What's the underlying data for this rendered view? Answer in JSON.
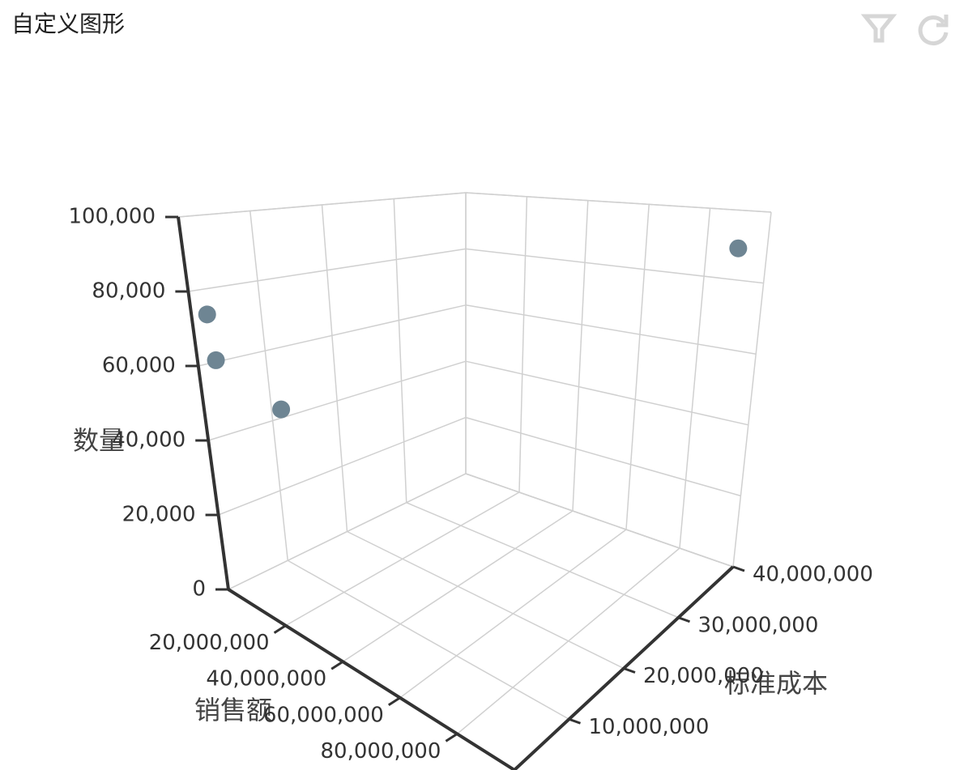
{
  "chart_data": {
    "type": "scatter3d",
    "title": "自定义图形",
    "x_label": "销售额",
    "y_label": "标准成本",
    "z_label": "数量",
    "color": "#6e8593",
    "x": [
      3000000,
      4000000,
      20000000,
      95000000
    ],
    "y": [
      1000000,
      1000000,
      3000000,
      38000000
    ],
    "z": [
      74000,
      62000,
      52000,
      90000
    ],
    "xlim": [
      0,
      100000000
    ],
    "xticks": [
      {
        "value": 20000000,
        "label": "20,000,000"
      },
      {
        "value": 40000000,
        "label": "40,000,000"
      },
      {
        "value": 60000000,
        "label": "60,000,000"
      },
      {
        "value": 80000000,
        "label": "80,000,000"
      }
    ],
    "ylim": [
      0,
      40000000
    ],
    "yticks": [
      {
        "value": 10000000,
        "label": "10,000,000"
      },
      {
        "value": 20000000,
        "label": "20,000,000"
      },
      {
        "value": 30000000,
        "label": "30,000,000"
      },
      {
        "value": 40000000,
        "label": "40,000,000"
      }
    ],
    "zlim": [
      0,
      100000
    ],
    "zticks": [
      0,
      {
        "value": 20000,
        "label": "20,000"
      },
      {
        "value": 40000,
        "label": "40,000"
      },
      {
        "value": 60000,
        "label": "60,000"
      },
      {
        "value": 80000,
        "label": "80,000"
      },
      {
        "value": 100000,
        "label": "100,000"
      }
    ],
    "grid": true
  }
}
